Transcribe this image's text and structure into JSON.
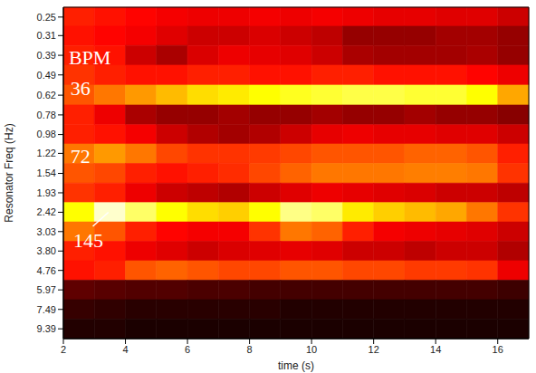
{
  "chart_data": {
    "type": "heatmap",
    "x_label": "time (s)",
    "y_label": "Resonator Freq (Hz)",
    "log": "y",
    "xlim": [
      2,
      17
    ],
    "xticks": [
      2,
      4,
      6,
      8,
      10,
      12,
      14,
      16
    ],
    "ylim": [
      0.223,
      10.52
    ],
    "yticks": [
      0.25,
      0.31,
      0.39,
      0.49,
      0.62,
      0.78,
      0.98,
      1.22,
      1.54,
      1.93,
      2.42,
      3.03,
      {
        "value": 3.8,
        "label": "3.80"
      },
      4.76,
      5.97,
      7.49,
      9.39
    ],
    "x_bins": [
      2,
      3,
      4,
      5,
      6,
      7,
      8,
      9,
      10,
      11,
      12,
      13,
      14,
      15,
      16,
      17
    ],
    "y_bins": [
      0.223,
      0.278,
      0.348,
      0.437,
      0.551,
      0.695,
      0.874,
      1.093,
      1.371,
      1.724,
      2.161,
      2.708,
      3.393,
      4.253,
      5.331,
      6.687,
      8.386,
      10.52
    ],
    "cells": [
      [
        0.42,
        0.4,
        0.38,
        0.36,
        0.35,
        0.35,
        0.36,
        0.35,
        0.36,
        0.35,
        0.34,
        0.34,
        0.33,
        0.33,
        0.3
      ],
      [
        0.4,
        0.38,
        0.36,
        0.33,
        0.3,
        0.3,
        0.32,
        0.3,
        0.28,
        0.22,
        0.22,
        0.22,
        0.24,
        0.24,
        0.22
      ],
      [
        0.42,
        0.4,
        0.3,
        0.25,
        0.32,
        0.35,
        0.34,
        0.33,
        0.3,
        0.25,
        0.24,
        0.24,
        0.24,
        0.25,
        0.22
      ],
      [
        0.45,
        0.42,
        0.4,
        0.4,
        0.42,
        0.42,
        0.4,
        0.4,
        0.42,
        0.42,
        0.4,
        0.4,
        0.4,
        0.38,
        0.35
      ],
      [
        0.5,
        0.55,
        0.6,
        0.65,
        0.7,
        0.72,
        0.75,
        0.78,
        0.8,
        0.82,
        0.82,
        0.8,
        0.8,
        0.75,
        0.62
      ],
      [
        0.42,
        0.35,
        0.25,
        0.22,
        0.22,
        0.24,
        0.22,
        0.22,
        0.24,
        0.22,
        0.22,
        0.24,
        0.22,
        0.22,
        0.2
      ],
      [
        0.42,
        0.4,
        0.36,
        0.3,
        0.26,
        0.24,
        0.26,
        0.3,
        0.34,
        0.35,
        0.34,
        0.34,
        0.33,
        0.33,
        0.3
      ],
      [
        0.55,
        0.6,
        0.55,
        0.48,
        0.45,
        0.45,
        0.46,
        0.48,
        0.5,
        0.5,
        0.5,
        0.52,
        0.52,
        0.5,
        0.42
      ],
      [
        0.5,
        0.48,
        0.42,
        0.4,
        0.42,
        0.44,
        0.48,
        0.52,
        0.55,
        0.55,
        0.55,
        0.56,
        0.56,
        0.55,
        0.45
      ],
      [
        0.45,
        0.42,
        0.35,
        0.3,
        0.28,
        0.26,
        0.3,
        0.33,
        0.35,
        0.34,
        0.33,
        0.32,
        0.3,
        0.3,
        0.28
      ],
      [
        0.75,
        0.95,
        0.85,
        0.75,
        0.7,
        0.68,
        0.75,
        0.88,
        0.85,
        0.72,
        0.68,
        0.65,
        0.62,
        0.55,
        0.45
      ],
      [
        0.55,
        0.5,
        0.42,
        0.38,
        0.36,
        0.36,
        0.45,
        0.55,
        0.52,
        0.42,
        0.36,
        0.35,
        0.34,
        0.33,
        0.3
      ],
      [
        0.42,
        0.4,
        0.35,
        0.33,
        0.3,
        0.32,
        0.33,
        0.34,
        0.33,
        0.3,
        0.3,
        0.28,
        0.3,
        0.3,
        0.26
      ],
      [
        0.4,
        0.42,
        0.5,
        0.52,
        0.5,
        0.48,
        0.48,
        0.5,
        0.5,
        0.48,
        0.48,
        0.46,
        0.46,
        0.45,
        0.35
      ],
      [
        0.14,
        0.13,
        0.12,
        0.12,
        0.11,
        0.11,
        0.1,
        0.1,
        0.1,
        0.1,
        0.1,
        0.1,
        0.1,
        0.1,
        0.09
      ],
      [
        0.08,
        0.07,
        0.06,
        0.06,
        0.06,
        0.06,
        0.06,
        0.05,
        0.05,
        0.05,
        0.05,
        0.05,
        0.05,
        0.05,
        0.05
      ],
      [
        0.05,
        0.05,
        0.04,
        0.04,
        0.04,
        0.04,
        0.04,
        0.04,
        0.04,
        0.04,
        0.04,
        0.04,
        0.04,
        0.04,
        0.04
      ]
    ],
    "annotations": [
      {
        "text": "BPM",
        "x": 2.85,
        "y": 0.4
      },
      {
        "text": "36",
        "x": 2.55,
        "y": 0.57
      },
      {
        "text": "72",
        "x": 2.55,
        "y": 1.25
      },
      {
        "text": "145",
        "x": 2.8,
        "y": 3.35,
        "line": [
          [
            2.95,
            2.85
          ],
          [
            3.45,
            2.42
          ]
        ]
      }
    ]
  }
}
